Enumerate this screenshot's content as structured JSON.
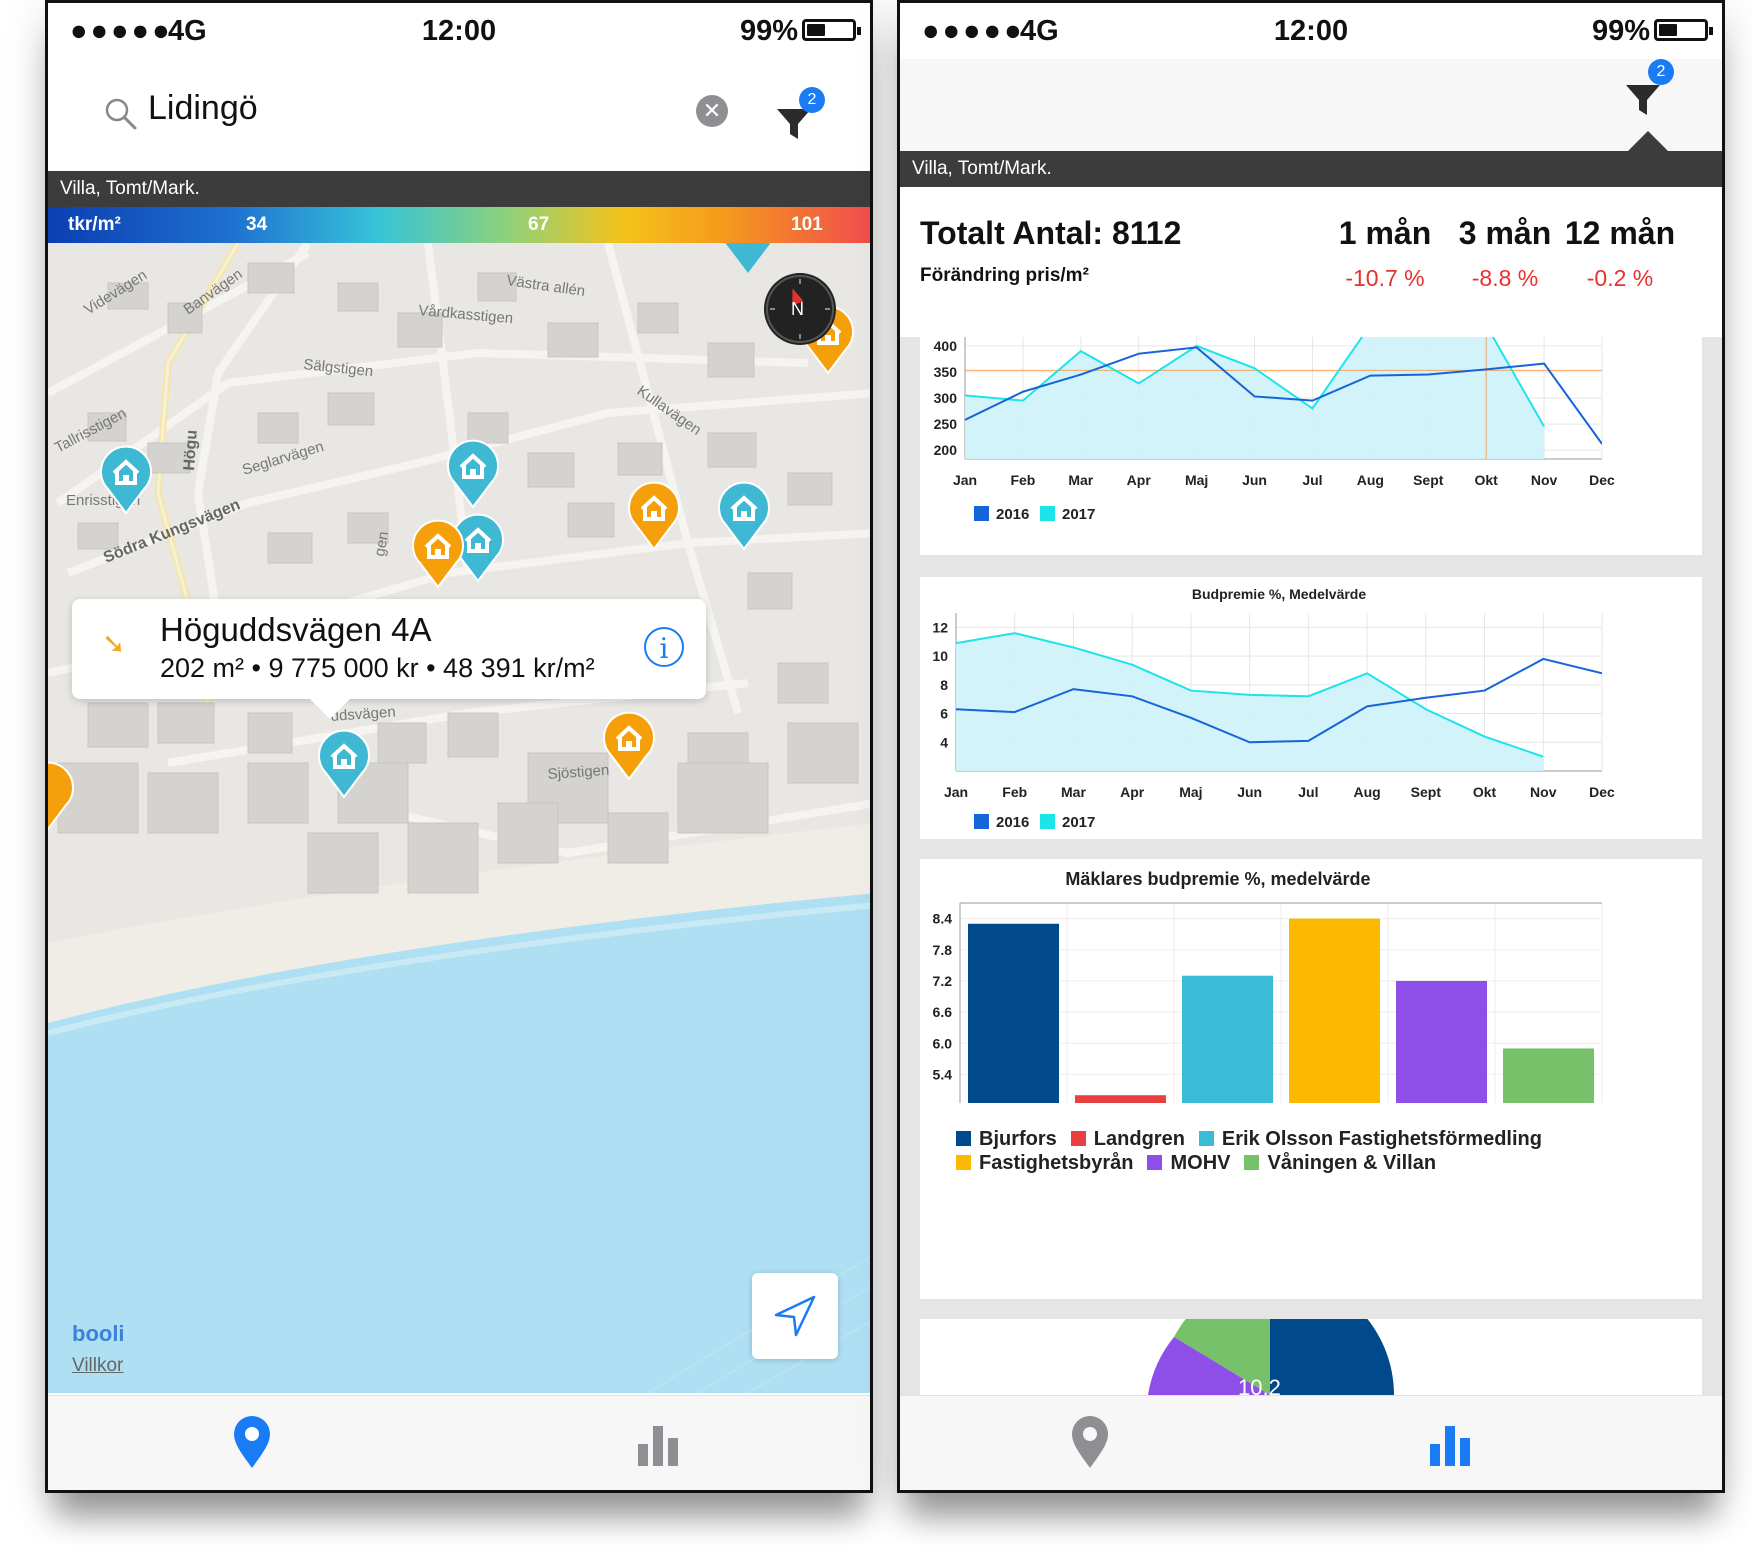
{
  "status_bar": {
    "signal_dots": "●●●●●",
    "network": "4G",
    "time": "12:00",
    "battery": "99%"
  },
  "left": {
    "search": {
      "value": "Lidingö"
    },
    "filter_badge": "2",
    "category": "Villa, Tomt/Mark.",
    "price_legend": {
      "unit": "tkr/m²",
      "ticks": [
        "34",
        "67",
        "101"
      ]
    },
    "map_labels": [
      "Videvägen",
      "Banvägen",
      "Västra allén",
      "Vårdkasstigen",
      "Sälgstigen",
      "Tallrisstigen",
      "Seglarvägen",
      "Kullavägen",
      "Enrisstigen",
      "Södra Kungsvägen",
      "Högu",
      "gen",
      "ddsvägen",
      "Sjöstigen"
    ],
    "compass_letter": "N",
    "callout": {
      "title": "Höguddsvägen 4A",
      "details": "202 m² • 9 775 000 kr • 48 391 kr/m²",
      "info": "i"
    },
    "brand": "booli",
    "terms": "Villkor",
    "colors": {
      "pin_blue": "#3fb9d3",
      "pin_orange": "#f5a00b",
      "water": "#aedff2",
      "accent": "#1a7cf5"
    }
  },
  "right": {
    "filter_badge": "2",
    "category": "Villa, Tomt/Mark.",
    "stats": {
      "total": "Totalt Antal: 8112",
      "change_label": "Förändring pris/m²",
      "periods": [
        {
          "label": "1 mån",
          "value": "-10.7 %"
        },
        {
          "label": "3 mån",
          "value": "-8.8 %"
        },
        {
          "label": "12 mån",
          "value": "-0.2 %"
        }
      ]
    },
    "pie_label_partial": "10.2"
  },
  "chart_data": [
    {
      "type": "line",
      "title": "",
      "categories": [
        "Jan",
        "Feb",
        "Mar",
        "Apr",
        "Maj",
        "Jun",
        "Jul",
        "Aug",
        "Sept",
        "Okt",
        "Nov",
        "Dec"
      ],
      "series": [
        {
          "name": "2016",
          "color": "#1565d8",
          "values": [
            258,
            312,
            345,
            385,
            397,
            303,
            295,
            343,
            345,
            355,
            366,
            212
          ]
        },
        {
          "name": "2017",
          "color": "#1de4ea",
          "values": [
            305,
            295,
            390,
            328,
            400,
            357,
            280,
            440,
            null,
            440,
            245,
            null
          ]
        }
      ],
      "yticks": [
        400,
        350,
        300,
        250,
        200
      ],
      "ylim": [
        183,
        417
      ],
      "reference_line": 353,
      "reference_color": "#f4a460",
      "legend": "bottom-left",
      "grid": true
    },
    {
      "type": "line",
      "title": "Budpremie %, Medelvärde",
      "categories": [
        "Jan",
        "Feb",
        "Mar",
        "Apr",
        "Maj",
        "Jun",
        "Jul",
        "Aug",
        "Sept",
        "Okt",
        "Nov",
        "Dec"
      ],
      "series": [
        {
          "name": "2016",
          "color": "#1565d8",
          "values": [
            6.3,
            6.1,
            7.7,
            7.2,
            5.7,
            4.0,
            4.1,
            6.5,
            7.1,
            7.6,
            9.8,
            8.8
          ]
        },
        {
          "name": "2017",
          "color": "#1de4ea",
          "values": [
            10.9,
            11.6,
            10.6,
            9.4,
            7.6,
            7.3,
            7.2,
            8.8,
            6.3,
            4.4,
            3.0,
            null
          ]
        }
      ],
      "yticks": [
        12,
        10,
        8,
        6,
        4
      ],
      "ylim": [
        2,
        13
      ],
      "legend": "bottom-left",
      "grid": true
    },
    {
      "type": "bar",
      "title": "Mäklares budpremie %, medelvärde",
      "categories": [
        "Bjurfors",
        "Landgren",
        "Erik Olsson Fastighetsförmedling",
        "Fastighetsbyrån",
        "MOHV",
        "Våningen & Villan"
      ],
      "values": [
        8.3,
        5.0,
        7.3,
        8.4,
        7.2,
        5.9
      ],
      "colors": [
        "#004a8c",
        "#e84040",
        "#3bbcd6",
        "#fbb900",
        "#8e4fe8",
        "#77c16b"
      ],
      "yticks": [
        8.4,
        7.8,
        7.2,
        6.6,
        6.0,
        5.4
      ],
      "ylim": [
        4.85,
        8.7
      ],
      "legend": "bottom-left",
      "grid": true
    }
  ]
}
